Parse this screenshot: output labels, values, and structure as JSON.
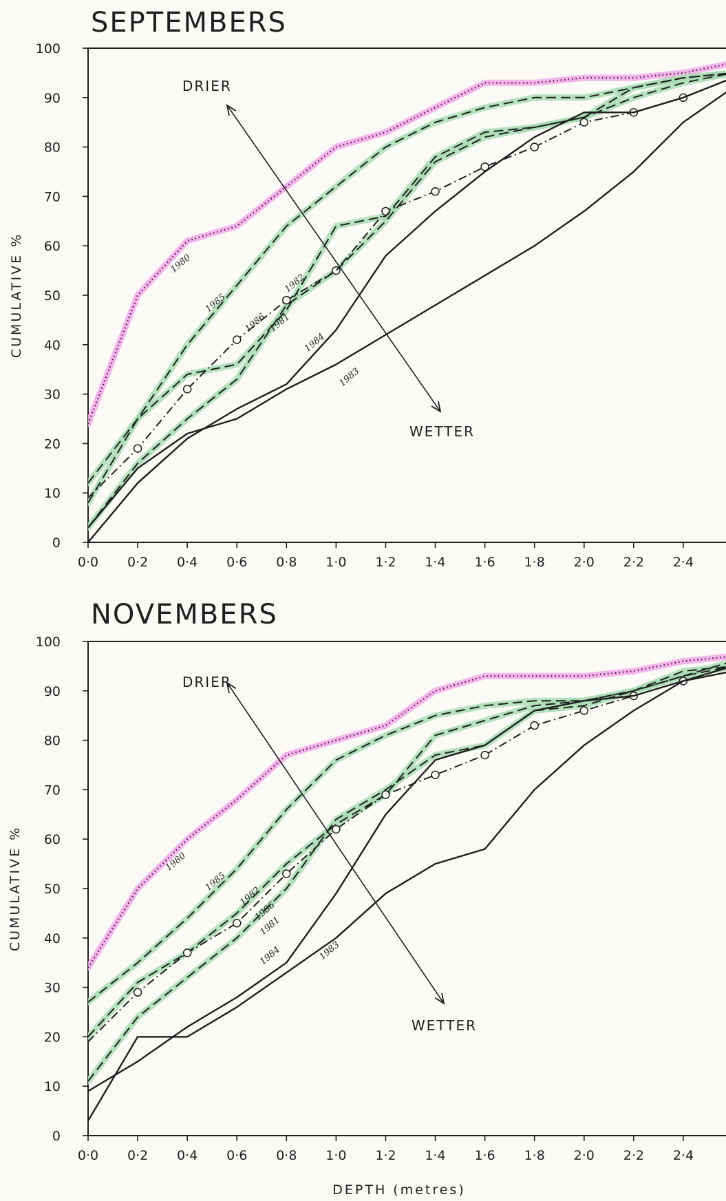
{
  "chart_data": [
    {
      "type": "line",
      "title": "SEPTEMBERS",
      "ylabel": "CUMULATIVE %",
      "xlabel": "",
      "xlim": [
        0,
        2.6
      ],
      "ylim": [
        0,
        100
      ],
      "x_ticks": [
        "0·0",
        "0·2",
        "0·4",
        "0·6",
        "0·8",
        "1·0",
        "1·2",
        "1·4",
        "1·6",
        "1·8",
        "2·0",
        "2·2",
        "2·4"
      ],
      "y_ticks": [
        "0",
        "10",
        "20",
        "30",
        "40",
        "50",
        "60",
        "70",
        "80",
        "90",
        "100"
      ],
      "annotations": {
        "drier": "DRIER",
        "wetter": "WETTER"
      },
      "series": [
        {
          "name": "1980",
          "style": "dotted",
          "highlight": "#f2a6e8",
          "x": [
            0.0,
            0.2,
            0.4,
            0.6,
            0.8,
            1.0,
            1.2,
            1.4,
            1.6,
            1.8,
            2.0,
            2.2,
            2.4,
            2.6
          ],
          "y": [
            24,
            50,
            61,
            64,
            72,
            80,
            83,
            88,
            93,
            93,
            94,
            94,
            95,
            97
          ],
          "label_pos": [
            0.38,
            56
          ]
        },
        {
          "name": "1985",
          "style": "dashed",
          "highlight": "#a8dcb2",
          "x": [
            0.0,
            0.2,
            0.4,
            0.6,
            0.8,
            1.0,
            1.2,
            1.4,
            1.6,
            1.8,
            2.0,
            2.2,
            2.4,
            2.6
          ],
          "y": [
            12,
            25,
            40,
            52,
            64,
            72,
            80,
            85,
            88,
            90,
            90,
            92,
            94,
            95
          ],
          "label_pos": [
            0.52,
            48
          ]
        },
        {
          "name": "1986",
          "style": "dashdot",
          "markers": true,
          "x": [
            0.0,
            0.2,
            0.4,
            0.6,
            0.8,
            1.0,
            1.2,
            1.4,
            1.6,
            1.8,
            2.0,
            2.2,
            2.4,
            2.6
          ],
          "y": [
            9,
            19,
            31,
            41,
            49,
            55,
            67,
            71,
            76,
            80,
            85,
            87,
            90,
            94
          ],
          "label_pos": [
            0.68,
            44
          ]
        },
        {
          "name": "1982",
          "style": "dashed",
          "highlight": "#a8dcb2",
          "x": [
            0.0,
            0.2,
            0.4,
            0.6,
            0.8,
            1.0,
            1.2,
            1.4,
            1.6,
            1.8,
            2.0,
            2.2,
            2.4,
            2.6
          ],
          "y": [
            8,
            25,
            34,
            36,
            47,
            64,
            66,
            78,
            83,
            84,
            86,
            90,
            93,
            95
          ],
          "label_pos": [
            0.84,
            52
          ]
        },
        {
          "name": "1981",
          "style": "dashed",
          "highlight": "#a8dcb2",
          "x": [
            0.0,
            0.2,
            0.4,
            0.6,
            0.8,
            1.0,
            1.2,
            1.4,
            1.6,
            1.8,
            2.0,
            2.2,
            2.4,
            2.6
          ],
          "y": [
            3,
            16,
            25,
            33,
            48,
            55,
            65,
            77,
            82,
            84,
            86,
            92,
            94,
            95
          ],
          "label_pos": [
            0.78,
            44
          ]
        },
        {
          "name": "1984",
          "style": "solid",
          "x": [
            0.0,
            0.2,
            0.4,
            0.6,
            0.8,
            1.0,
            1.2,
            1.4,
            1.6,
            1.8,
            2.0,
            2.2,
            2.4,
            2.6
          ],
          "y": [
            0,
            12,
            21,
            27,
            32,
            43,
            58,
            67,
            75,
            82,
            87,
            87,
            90,
            94
          ],
          "label_pos": [
            0.92,
            40
          ]
        },
        {
          "name": "1983",
          "style": "solid",
          "x": [
            0.0,
            0.2,
            0.4,
            0.6,
            0.8,
            1.0,
            1.2,
            1.4,
            1.6,
            1.8,
            2.0,
            2.2,
            2.4,
            2.6
          ],
          "y": [
            3,
            15,
            22,
            25,
            31,
            36,
            42,
            48,
            54,
            60,
            67,
            75,
            85,
            92
          ],
          "label_pos": [
            1.06,
            33
          ]
        }
      ]
    },
    {
      "type": "line",
      "title": "NOVEMBERS",
      "ylabel": "CUMULATIVE %",
      "xlabel": "DEPTH (metres)",
      "xlim": [
        0,
        2.6
      ],
      "ylim": [
        0,
        100
      ],
      "x_ticks": [
        "0·0",
        "0·2",
        "0·4",
        "0·6",
        "0·8",
        "1·0",
        "1·2",
        "1·4",
        "1·6",
        "1·8",
        "2·0",
        "2·2",
        "2·4"
      ],
      "y_ticks": [
        "0",
        "10",
        "20",
        "30",
        "40",
        "50",
        "60",
        "70",
        "80",
        "90",
        "100"
      ],
      "annotations": {
        "drier": "DRIER",
        "wetter": "WETTER"
      },
      "series": [
        {
          "name": "1980",
          "style": "dotted",
          "highlight": "#f2a6e8",
          "x": [
            0.0,
            0.2,
            0.4,
            0.6,
            0.8,
            1.0,
            1.2,
            1.4,
            1.6,
            1.8,
            2.0,
            2.2,
            2.4,
            2.6
          ],
          "y": [
            34,
            50,
            60,
            68,
            77,
            80,
            83,
            90,
            93,
            93,
            93,
            94,
            96,
            97
          ],
          "label_pos": [
            0.36,
            55
          ]
        },
        {
          "name": "1985",
          "style": "dashed",
          "highlight": "#a8dcb2",
          "x": [
            0.0,
            0.2,
            0.4,
            0.6,
            0.8,
            1.0,
            1.2,
            1.4,
            1.6,
            1.8,
            2.0,
            2.2,
            2.4,
            2.6
          ],
          "y": [
            27,
            35,
            44,
            54,
            66,
            76,
            81,
            85,
            87,
            88,
            88,
            90,
            93,
            96
          ],
          "label_pos": [
            0.52,
            51
          ]
        },
        {
          "name": "1982",
          "style": "dashed",
          "highlight": "#a8dcb2",
          "x": [
            0.0,
            0.2,
            0.4,
            0.6,
            0.8,
            1.0,
            1.2,
            1.4,
            1.6,
            1.8,
            2.0,
            2.2,
            2.4,
            2.6
          ],
          "y": [
            20,
            31,
            37,
            45,
            55,
            63,
            69,
            81,
            84,
            87,
            88,
            90,
            93,
            95
          ],
          "label_pos": [
            0.66,
            48
          ]
        },
        {
          "name": "1986",
          "style": "dashdot",
          "markers": true,
          "x": [
            0.0,
            0.2,
            0.4,
            0.6,
            0.8,
            1.0,
            1.2,
            1.4,
            1.6,
            1.8,
            2.0,
            2.2,
            2.4,
            2.6
          ],
          "y": [
            19,
            29,
            37,
            43,
            53,
            62,
            69,
            73,
            77,
            83,
            86,
            89,
            92,
            94
          ],
          "label_pos": [
            0.72,
            45
          ]
        },
        {
          "name": "1981",
          "style": "dashed",
          "highlight": "#a8dcb2",
          "x": [
            0.0,
            0.2,
            0.4,
            0.6,
            0.8,
            1.0,
            1.2,
            1.4,
            1.6,
            1.8,
            2.0,
            2.2,
            2.4,
            2.6
          ],
          "y": [
            11,
            24,
            32,
            40,
            50,
            64,
            70,
            77,
            79,
            86,
            87,
            90,
            94,
            95
          ],
          "label_pos": [
            0.74,
            42
          ]
        },
        {
          "name": "1984",
          "style": "solid",
          "x": [
            0.0,
            0.2,
            0.4,
            0.6,
            0.8,
            1.0,
            1.2,
            1.4,
            1.6,
            1.8,
            2.0,
            2.2,
            2.4,
            2.6
          ],
          "y": [
            9,
            15,
            22,
            28,
            35,
            49,
            65,
            76,
            79,
            86,
            88,
            89,
            92,
            95
          ],
          "label_pos": [
            0.74,
            36
          ]
        },
        {
          "name": "1983",
          "style": "solid",
          "x": [
            0.0,
            0.2,
            0.4,
            0.6,
            0.8,
            1.0,
            1.2,
            1.4,
            1.6,
            1.8,
            2.0,
            2.2,
            2.4,
            2.6
          ],
          "y": [
            3,
            20,
            20,
            26,
            33,
            40,
            49,
            55,
            58,
            70,
            79,
            86,
            92,
            94
          ],
          "label_pos": [
            0.98,
            37
          ]
        }
      ]
    }
  ]
}
